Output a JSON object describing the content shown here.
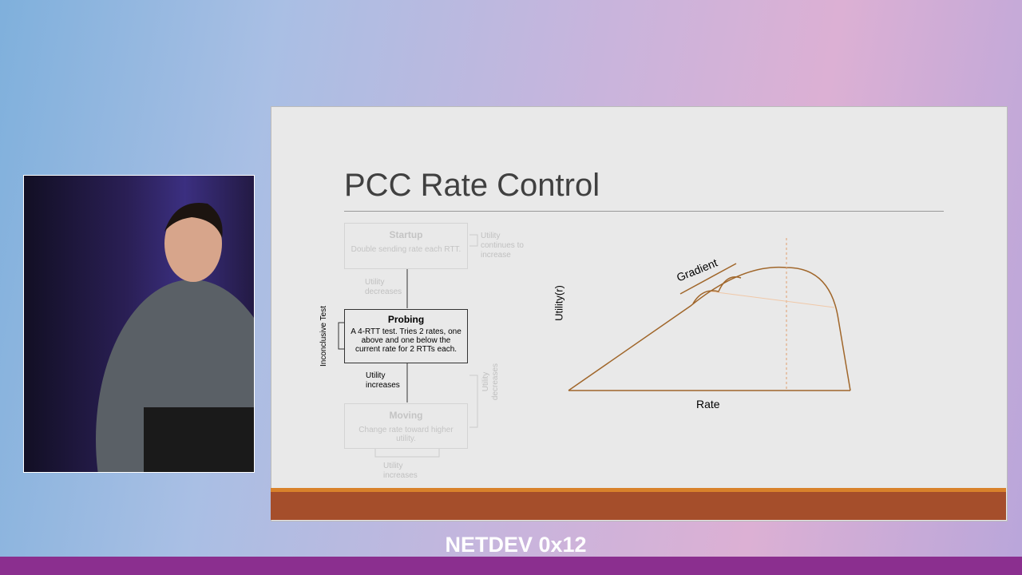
{
  "slide": {
    "title": "PCC Rate Control",
    "nodes": [
      {
        "title": "Startup",
        "body": "Double sending rate each RTT."
      },
      {
        "title": "Probing",
        "body": "A 4-RTT test. Tries 2 rates, one above and one below the current rate for 2 RTTs each."
      },
      {
        "title": "Moving",
        "body": "Change rate toward higher utility."
      }
    ],
    "edges": [
      "Utility continues to increase",
      "Utility decreases",
      "Inconclusive Test",
      "Utility increases",
      "Utility decreases",
      "Utility increases"
    ],
    "graph": {
      "gradient_label": "Gradient",
      "y_label": "Utility(r)",
      "x_label": "Rate"
    }
  },
  "footer": {
    "event": "NETDEV 0x12"
  }
}
